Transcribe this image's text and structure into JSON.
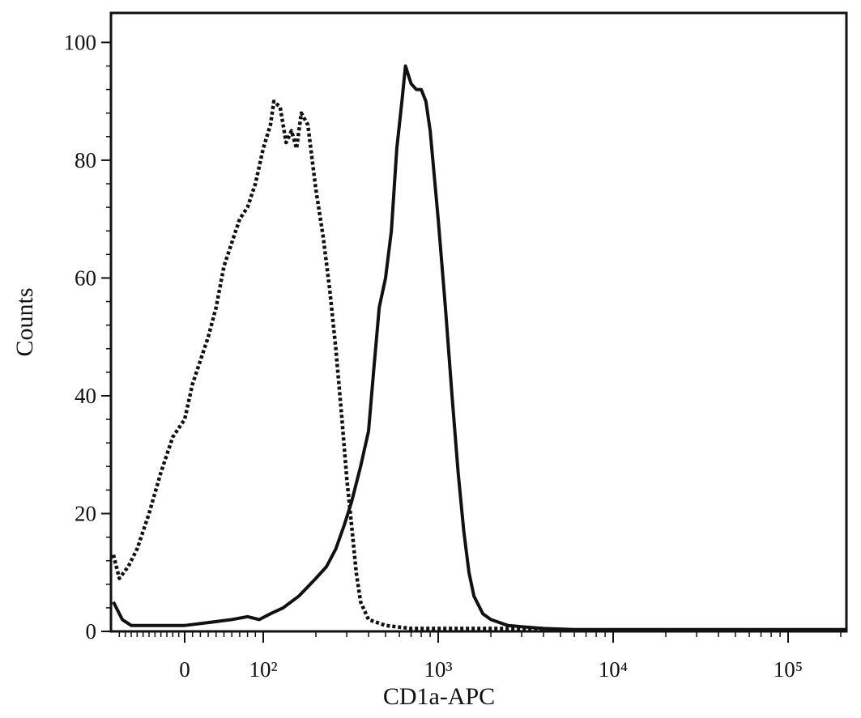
{
  "chart_data": {
    "type": "line",
    "title": "",
    "xlabel": "CD1a-APC",
    "ylabel": "Counts",
    "x_scale": "biexponential",
    "ylim": [
      0,
      105
    ],
    "y_ticks": [
      0,
      20,
      40,
      60,
      80,
      100
    ],
    "y_tick_labels": [
      "0",
      "20",
      "40",
      "60",
      "80",
      "100"
    ],
    "x_ticks": [
      0,
      100,
      1000,
      10000,
      100000
    ],
    "x_tick_labels": [
      "0",
      "10²",
      "10³",
      "10⁴",
      "10⁵"
    ],
    "grid": false,
    "legend": "none",
    "series": [
      {
        "style": "dotted",
        "color": "#111111",
        "points": [
          [
            -120,
            13
          ],
          [
            -110,
            9
          ],
          [
            -95,
            11
          ],
          [
            -80,
            14
          ],
          [
            -60,
            20
          ],
          [
            -40,
            27
          ],
          [
            -20,
            33
          ],
          [
            0,
            36
          ],
          [
            10,
            42
          ],
          [
            20,
            46
          ],
          [
            30,
            50
          ],
          [
            40,
            55
          ],
          [
            50,
            62
          ],
          [
            60,
            66
          ],
          [
            70,
            70
          ],
          [
            80,
            72
          ],
          [
            90,
            76
          ],
          [
            100,
            82
          ],
          [
            110,
            86
          ],
          [
            115,
            90
          ],
          [
            125,
            89
          ],
          [
            135,
            83
          ],
          [
            145,
            85
          ],
          [
            155,
            82
          ],
          [
            165,
            88
          ],
          [
            180,
            86
          ],
          [
            200,
            75
          ],
          [
            220,
            67
          ],
          [
            240,
            58
          ],
          [
            260,
            48
          ],
          [
            280,
            37
          ],
          [
            300,
            26
          ],
          [
            320,
            18
          ],
          [
            340,
            10
          ],
          [
            360,
            5
          ],
          [
            400,
            2
          ],
          [
            500,
            1
          ],
          [
            700,
            0.5
          ],
          [
            1000,
            0.5
          ],
          [
            2000,
            0.5
          ],
          [
            3000,
            0.5
          ],
          [
            4000,
            0.5
          ]
        ]
      },
      {
        "style": "solid",
        "color": "#111111",
        "points": [
          [
            -120,
            5
          ],
          [
            -105,
            2
          ],
          [
            -90,
            1
          ],
          [
            -60,
            1
          ],
          [
            -30,
            1
          ],
          [
            0,
            1
          ],
          [
            30,
            1.5
          ],
          [
            60,
            2
          ],
          [
            80,
            2.5
          ],
          [
            95,
            2
          ],
          [
            110,
            3
          ],
          [
            130,
            4
          ],
          [
            160,
            6
          ],
          [
            200,
            9
          ],
          [
            230,
            11
          ],
          [
            260,
            14
          ],
          [
            290,
            18
          ],
          [
            320,
            22
          ],
          [
            360,
            28
          ],
          [
            400,
            34
          ],
          [
            430,
            45
          ],
          [
            460,
            55
          ],
          [
            500,
            60
          ],
          [
            540,
            68
          ],
          [
            580,
            82
          ],
          [
            620,
            90
          ],
          [
            650,
            96
          ],
          [
            700,
            93
          ],
          [
            750,
            92
          ],
          [
            800,
            92
          ],
          [
            850,
            90
          ],
          [
            900,
            85
          ],
          [
            1000,
            70
          ],
          [
            1100,
            55
          ],
          [
            1200,
            40
          ],
          [
            1300,
            27
          ],
          [
            1400,
            17
          ],
          [
            1500,
            10
          ],
          [
            1600,
            6
          ],
          [
            1800,
            3
          ],
          [
            2000,
            2
          ],
          [
            2500,
            1
          ],
          [
            3000,
            0.8
          ],
          [
            4000,
            0.5
          ],
          [
            6000,
            0.3
          ],
          [
            10000,
            0.3
          ],
          [
            30000,
            0.3
          ],
          [
            100000,
            0.3
          ],
          [
            250000,
            0.3
          ]
        ]
      }
    ]
  }
}
